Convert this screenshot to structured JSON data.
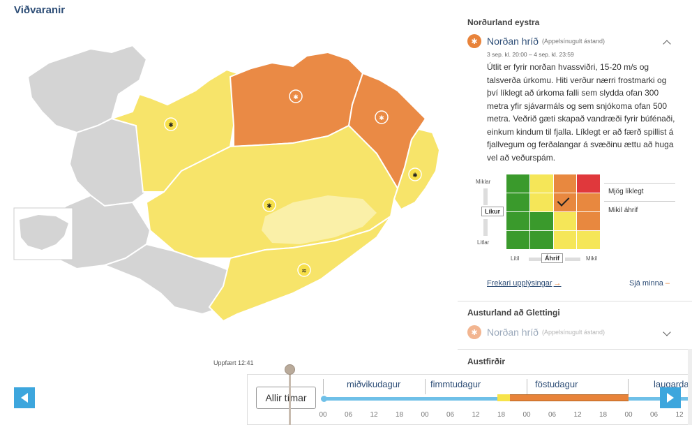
{
  "page_title": "Viðvaranir",
  "updated": "Uppfært 12:41",
  "sidebar": {
    "region1": {
      "title": "Norðurland eystra",
      "warning_name": "Norðan hríð",
      "warning_status": "(Appelsínugult ástand)",
      "time_range": "3 sep. kl. 20:00 – 4 sep. kl. 23:59",
      "description": "Útlit er fyrir norðan hvassviðri, 15-20 m/s og talsverða úrkomu. Hiti verður nærri frostmarki og því líklegt að úrkoma falli sem slydda ofan 300 metra yfir sjávarmáls og sem snjókoma ofan 500 metra. Veðrið gæti skapað vandræði fyrir búfénaði, einkum kindum til fjalla. Líklegt er að færð spillist á fjallvegum og ferðalangar á svæðinu ættu að huga vel að veðurspám.",
      "more_link": "Frekari upplýsingar",
      "more_arrow": "→",
      "less_link": "Sjá minna",
      "less_dash": "–"
    },
    "matrix": {
      "y_top": "Miklar",
      "y_axis": "Líkur",
      "y_bottom": "Litlar",
      "x_left": "Lítil",
      "x_axis": "Áhrif",
      "x_right": "Mikil",
      "legend_likelihood": "Mjög líklegt",
      "legend_impact": "Mikil áhrif",
      "colors": {
        "green": "#3a9a2c",
        "yellow": "#f5e658",
        "orange": "#e8883f",
        "red": "#e0383c"
      },
      "cells": [
        [
          "green",
          "yellow",
          "orange",
          "red"
        ],
        [
          "green",
          "yellow",
          "checked-orange",
          "orange"
        ],
        [
          "green",
          "green",
          "yellow",
          "orange"
        ],
        [
          "green",
          "green",
          "yellow",
          "yellow"
        ]
      ]
    },
    "region2": {
      "title": "Austurland að Glettingi",
      "warning_name": "Norðan hríð",
      "warning_status": "(Appelsínugult ástand)"
    },
    "region3": {
      "title": "Austfirðir"
    }
  },
  "timeline": {
    "all_times_label": "Allir tímar",
    "days": [
      "miðvikudagur",
      "fimmtudagur",
      "föstudagur",
      "laugarda"
    ],
    "hours": [
      "00",
      "06",
      "12",
      "18",
      "00",
      "06",
      "12",
      "18",
      "00",
      "06",
      "12",
      "18",
      "00",
      "06",
      "12"
    ]
  },
  "map_colors": {
    "grey": "#d4d4d4",
    "yellow": "#f7e46a",
    "orange": "#ea8a45",
    "light_yellow": "#faf0a8"
  }
}
